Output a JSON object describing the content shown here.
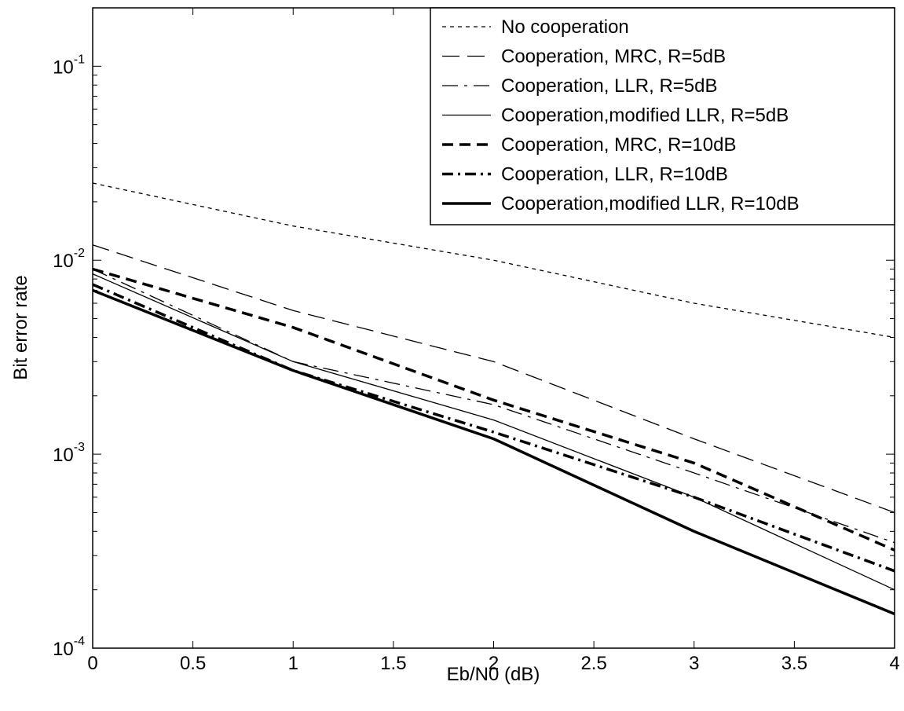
{
  "chart_data": {
    "type": "line",
    "xlabel": "Eb/N0 (dB)",
    "ylabel": "Bit error rate",
    "xlim": [
      0,
      4
    ],
    "ylim": [
      0.0001,
      0.2
    ],
    "yscale": "log",
    "grid": false,
    "legend_position": "top-right",
    "x_ticks": [
      {
        "value": 0,
        "label": "0"
      },
      {
        "value": 0.5,
        "label": "0.5"
      },
      {
        "value": 1,
        "label": "1"
      },
      {
        "value": 1.5,
        "label": "1.5"
      },
      {
        "value": 2,
        "label": "2"
      },
      {
        "value": 2.5,
        "label": "2.5"
      },
      {
        "value": 3,
        "label": "3"
      },
      {
        "value": 3.5,
        "label": "3.5"
      },
      {
        "value": 4,
        "label": "4"
      }
    ],
    "y_ticks": [
      {
        "value": 0.1,
        "base": "10",
        "exp": "-1"
      },
      {
        "value": 0.01,
        "base": "10",
        "exp": "-2"
      },
      {
        "value": 0.001,
        "base": "10",
        "exp": "-3"
      },
      {
        "value": 0.0001,
        "base": "10",
        "exp": "-4"
      }
    ],
    "x": [
      0,
      1,
      2,
      3,
      4
    ],
    "series": [
      {
        "name": "No cooperation",
        "style": "dotted",
        "weight": "thin",
        "values": [
          0.025,
          0.015,
          0.01,
          0.006,
          0.004
        ]
      },
      {
        "name": "Cooperation, MRC, R=5dB",
        "style": "dashed",
        "weight": "thin",
        "values": [
          0.012,
          0.0055,
          0.003,
          0.0012,
          0.0005
        ]
      },
      {
        "name": "Cooperation, LLR, R=5dB",
        "style": "dashdot",
        "weight": "thin",
        "values": [
          0.009,
          0.003,
          0.0018,
          0.0008,
          0.00035
        ]
      },
      {
        "name": "Cooperation,modified LLR, R=5dB",
        "style": "solid",
        "weight": "thin",
        "values": [
          0.0085,
          0.003,
          0.0015,
          0.0006,
          0.0002
        ]
      },
      {
        "name": "Cooperation, MRC, R=10dB",
        "style": "dashed",
        "weight": "thick",
        "values": [
          0.009,
          0.0045,
          0.0019,
          0.0009,
          0.00032
        ]
      },
      {
        "name": "Cooperation, LLR, R=10dB",
        "style": "dashdot",
        "weight": "thick",
        "values": [
          0.0075,
          0.0027,
          0.0013,
          0.0006,
          0.00025
        ]
      },
      {
        "name": "Cooperation,modified LLR, R=10dB",
        "style": "solid",
        "weight": "thick",
        "values": [
          0.007,
          0.0027,
          0.0012,
          0.0004,
          0.00015
        ]
      }
    ]
  }
}
